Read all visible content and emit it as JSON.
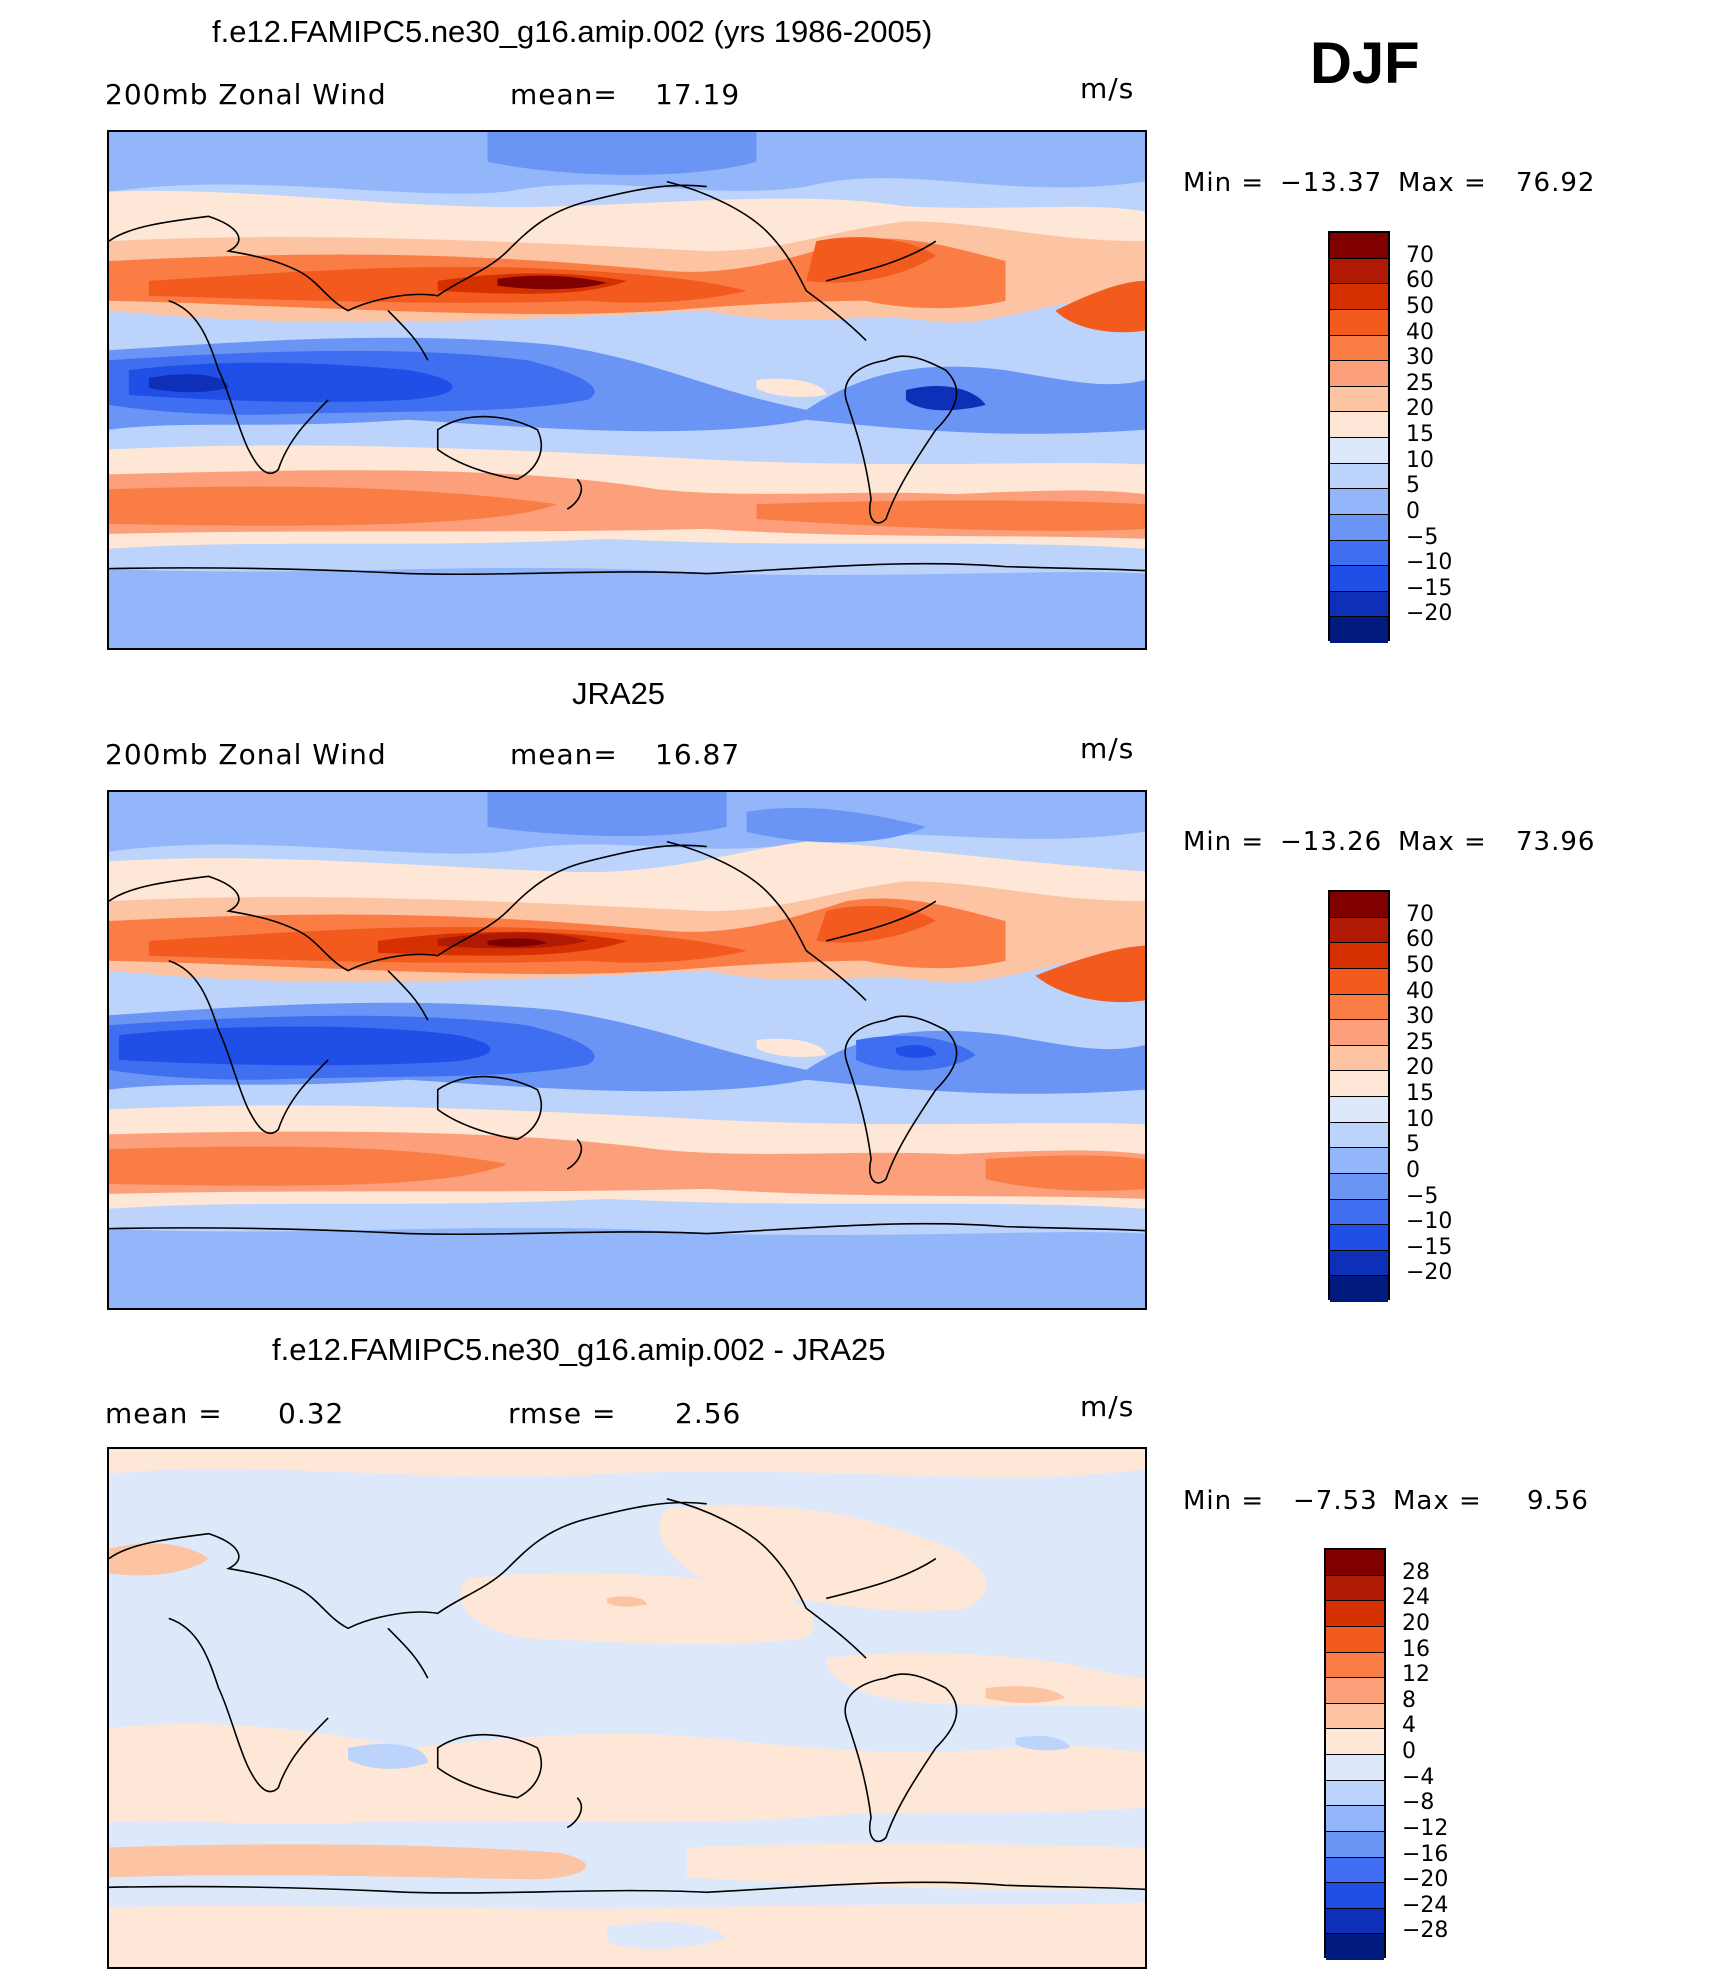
{
  "season": "DJF",
  "units": "m/s",
  "panels": [
    {
      "title": "f.e12.FAMIPC5.ne30_g16.amip.002 (yrs 1986-2005)",
      "left_label": "200mb Zonal Wind",
      "stat_label": "mean=",
      "stat_value": "17.19",
      "units": "m/s",
      "min_label": "Min =",
      "min_value": "−13.37",
      "max_label": "Max =",
      "max_value": "76.92"
    },
    {
      "title": "JRA25",
      "left_label": "200mb Zonal Wind",
      "stat_label": "mean=",
      "stat_value": "16.87",
      "units": "m/s",
      "min_label": "Min =",
      "min_value": "−13.26",
      "max_label": "Max =",
      "max_value": "73.96"
    },
    {
      "title": "f.e12.FAMIPC5.ne30_g16.amip.002 - JRA25",
      "mean_label": "mean =",
      "mean_value": "0.32",
      "rmse_label": "rmse =",
      "rmse_value": "2.56",
      "units": "m/s",
      "min_label": "Min =",
      "min_value": "−7.53",
      "max_label": "Max =",
      "max_value": "9.56"
    }
  ],
  "colorbars": [
    {
      "labels": [
        "70",
        "60",
        "50",
        "40",
        "30",
        "25",
        "20",
        "15",
        "10",
        "5",
        "0",
        "−5",
        "−10",
        "−15",
        "−20"
      ],
      "colors": [
        "#800000",
        "#b01a05",
        "#d43000",
        "#f25a1e",
        "#fa7d46",
        "#fca07c",
        "#fdc4a4",
        "#fee7d6",
        "#dde9fb",
        "#bcd3fb",
        "#93b6fa",
        "#6a95f5",
        "#3f6ef0",
        "#1f4fe6",
        "#0e2fb8",
        "#001a80"
      ]
    },
    {
      "labels": [
        "70",
        "60",
        "50",
        "40",
        "30",
        "25",
        "20",
        "15",
        "10",
        "5",
        "0",
        "−5",
        "−10",
        "−15",
        "−20"
      ],
      "colors": [
        "#800000",
        "#b01a05",
        "#d43000",
        "#f25a1e",
        "#fa7d46",
        "#fca07c",
        "#fdc4a4",
        "#fee7d6",
        "#dde9fb",
        "#bcd3fb",
        "#93b6fa",
        "#6a95f5",
        "#3f6ef0",
        "#1f4fe6",
        "#0e2fb8",
        "#001a80"
      ]
    },
    {
      "labels": [
        "28",
        "24",
        "20",
        "16",
        "12",
        "8",
        "4",
        "0",
        "−4",
        "−8",
        "−12",
        "−16",
        "−20",
        "−24",
        "−28"
      ],
      "colors": [
        "#800000",
        "#b01a05",
        "#d43000",
        "#f25a1e",
        "#fa7d46",
        "#fca07c",
        "#fdc4a4",
        "#fee7d6",
        "#dde9fb",
        "#bcd3fb",
        "#93b6fa",
        "#6a95f5",
        "#3f6ef0",
        "#1f4fe6",
        "#0e2fb8",
        "#001a80"
      ]
    }
  ]
}
